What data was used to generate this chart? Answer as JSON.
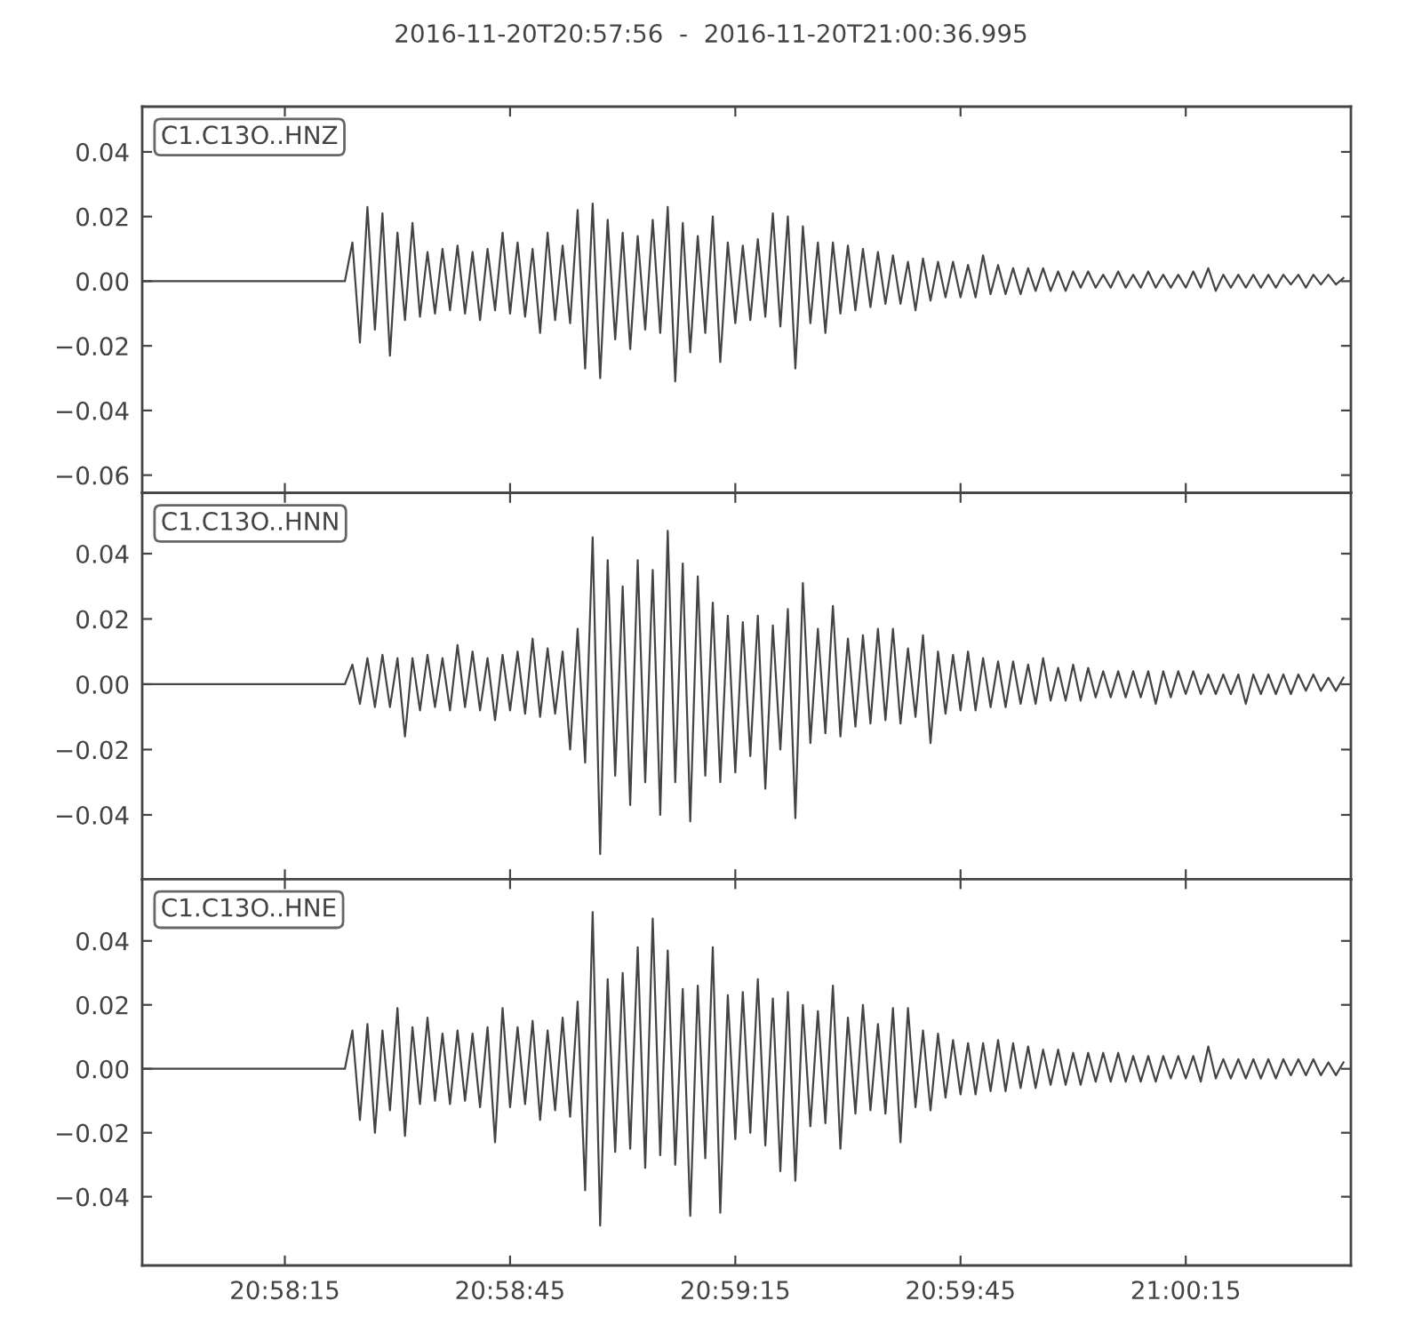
{
  "chart_data": [
    {
      "type": "line",
      "title": "2016-11-20T20:57:56  -  2016-11-20T21:00:36.995",
      "legend": "top left",
      "tick_labels": "y",
      "x": [
        "2016-11-20T20:57:56",
        "2016-11-20T20:58:05",
        "2016-11-20T20:58:14",
        "2016-11-20T20:58:23",
        "2016-11-20T20:58:24",
        "2016-11-20T20:58:25",
        "2016-11-20T20:58:26",
        "2016-11-20T20:58:27",
        "2016-11-20T20:58:28",
        "2016-11-20T20:58:29",
        "2016-11-20T20:58:30",
        "2016-11-20T20:58:31",
        "2016-11-20T20:58:32",
        "2016-11-20T20:58:33",
        "2016-11-20T20:58:34",
        "2016-11-20T20:58:35",
        "2016-11-20T20:58:36",
        "2016-11-20T20:58:37",
        "2016-11-20T20:58:38",
        "2016-11-20T20:58:39",
        "2016-11-20T20:58:40",
        "2016-11-20T20:58:41",
        "2016-11-20T20:58:42",
        "2016-11-20T20:58:43",
        "2016-11-20T20:58:44",
        "2016-11-20T20:58:45",
        "2016-11-20T20:58:46",
        "2016-11-20T20:58:47",
        "2016-11-20T20:58:48",
        "2016-11-20T20:58:49",
        "2016-11-20T20:58:50",
        "2016-11-20T20:58:51",
        "2016-11-20T20:58:52",
        "2016-11-20T20:58:53",
        "2016-11-20T20:58:54",
        "2016-11-20T20:58:55",
        "2016-11-20T20:58:56",
        "2016-11-20T20:58:57",
        "2016-11-20T20:58:58",
        "2016-11-20T20:58:59",
        "2016-11-20T20:59:00",
        "2016-11-20T20:59:01",
        "2016-11-20T20:59:02",
        "2016-11-20T20:59:03",
        "2016-11-20T20:59:04",
        "2016-11-20T20:59:05",
        "2016-11-20T20:59:06",
        "2016-11-20T20:59:07",
        "2016-11-20T20:59:08",
        "2016-11-20T20:59:09",
        "2016-11-20T20:59:10",
        "2016-11-20T20:59:11",
        "2016-11-20T20:59:12",
        "2016-11-20T20:59:13",
        "2016-11-20T20:59:14",
        "2016-11-20T20:59:15",
        "2016-11-20T20:59:16",
        "2016-11-20T20:59:17",
        "2016-11-20T20:59:18",
        "2016-11-20T20:59:19",
        "2016-11-20T20:59:20",
        "2016-11-20T20:59:21",
        "2016-11-20T20:59:22",
        "2016-11-20T20:59:23",
        "2016-11-20T20:59:24",
        "2016-11-20T20:59:25",
        "2016-11-20T20:59:26",
        "2016-11-20T20:59:27",
        "2016-11-20T20:59:28",
        "2016-11-20T20:59:29",
        "2016-11-20T20:59:30",
        "2016-11-20T20:59:31",
        "2016-11-20T20:59:32",
        "2016-11-20T20:59:33",
        "2016-11-20T20:59:34",
        "2016-11-20T20:59:35",
        "2016-11-20T20:59:36",
        "2016-11-20T20:59:37",
        "2016-11-20T20:59:38",
        "2016-11-20T20:59:39",
        "2016-11-20T20:59:40",
        "2016-11-20T20:59:41",
        "2016-11-20T20:59:42",
        "2016-11-20T20:59:43",
        "2016-11-20T20:59:44",
        "2016-11-20T20:59:45",
        "2016-11-20T20:59:46",
        "2016-11-20T20:59:47",
        "2016-11-20T20:59:48",
        "2016-11-20T20:59:49",
        "2016-11-20T20:59:50",
        "2016-11-20T20:59:51",
        "2016-11-20T20:59:52",
        "2016-11-20T20:59:53",
        "2016-11-20T20:59:54",
        "2016-11-20T20:59:55",
        "2016-11-20T20:59:56",
        "2016-11-20T20:59:57",
        "2016-11-20T20:59:58",
        "2016-11-20T20:59:59",
        "2016-11-20T21:00:00",
        "2016-11-20T21:00:01",
        "2016-11-20T21:00:02",
        "2016-11-20T21:00:03",
        "2016-11-20T21:00:04",
        "2016-11-20T21:00:05",
        "2016-11-20T21:00:06",
        "2016-11-20T21:00:07",
        "2016-11-20T21:00:08",
        "2016-11-20T21:00:09",
        "2016-11-20T21:00:10",
        "2016-11-20T21:00:11",
        "2016-11-20T21:00:12",
        "2016-11-20T21:00:13",
        "2016-11-20T21:00:14",
        "2016-11-20T21:00:15",
        "2016-11-20T21:00:16",
        "2016-11-20T21:00:17",
        "2016-11-20T21:00:18",
        "2016-11-20T21:00:19",
        "2016-11-20T21:00:20",
        "2016-11-20T21:00:21",
        "2016-11-20T21:00:22",
        "2016-11-20T21:00:23",
        "2016-11-20T21:00:24",
        "2016-11-20T21:00:25",
        "2016-11-20T21:00:26",
        "2016-11-20T21:00:27",
        "2016-11-20T21:00:28",
        "2016-11-20T21:00:29",
        "2016-11-20T21:00:30",
        "2016-11-20T21:00:31",
        "2016-11-20T21:00:32",
        "2016-11-20T21:00:33",
        "2016-11-20T21:00:34",
        "2016-11-20T21:00:35",
        "2016-11-20T21:00:36"
      ],
      "series": [
        {
          "name": "C1.C13O..HNZ",
          "color": "#444444",
          "values": [
            0,
            0,
            0,
            0,
            0.012,
            -0.019,
            0.023,
            -0.015,
            0.021,
            -0.023,
            0.015,
            -0.012,
            0.018,
            -0.011,
            0.009,
            -0.01,
            0.01,
            -0.009,
            0.011,
            -0.01,
            0.009,
            -0.012,
            0.01,
            -0.009,
            0.015,
            -0.01,
            0.012,
            -0.011,
            0.01,
            -0.016,
            0.015,
            -0.012,
            0.011,
            -0.013,
            0.022,
            -0.027,
            0.024,
            -0.03,
            0.019,
            -0.018,
            0.015,
            -0.021,
            0.014,
            -0.015,
            0.019,
            -0.016,
            0.023,
            -0.031,
            0.018,
            -0.022,
            0.014,
            -0.016,
            0.02,
            -0.025,
            0.012,
            -0.013,
            0.011,
            -0.012,
            0.013,
            -0.011,
            0.021,
            -0.014,
            0.02,
            -0.027,
            0.017,
            -0.013,
            0.012,
            -0.016,
            0.012,
            -0.01,
            0.011,
            -0.009,
            0.01,
            -0.008,
            0.009,
            -0.007,
            0.008,
            -0.007,
            0.006,
            -0.009,
            0.007,
            -0.006,
            0.006,
            -0.005,
            0.006,
            -0.005,
            0.005,
            -0.005,
            0.008,
            -0.004,
            0.005,
            -0.004,
            0.004,
            -0.004,
            0.004,
            -0.003,
            0.004,
            -0.003,
            0.003,
            -0.003,
            0.003,
            -0.002,
            0.003,
            -0.002,
            0.002,
            -0.002,
            0.003,
            -0.002,
            0.002,
            -0.002,
            0.003,
            -0.002,
            0.002,
            -0.002,
            0.002,
            -0.002,
            0.003,
            -0.002,
            0.004,
            -0.003,
            0.002,
            -0.002,
            0.002,
            -0.002,
            0.002,
            -0.002,
            0.002,
            -0.002,
            0.002,
            -0.001,
            0.002,
            -0.002,
            0.002,
            -0.001,
            0.002,
            -0.001,
            0.001
          ]
        }
      ],
      "xlim": [
        "2016-11-20T20:57:56",
        "2016-11-20T21:00:36.995"
      ],
      "xticks": [
        {
          "value": "2016-11-20T20:58:15",
          "label": null
        },
        {
          "value": "2016-11-20T20:58:45",
          "label": null
        },
        {
          "value": "2016-11-20T20:59:15",
          "label": null
        },
        {
          "value": "2016-11-20T20:59:45",
          "label": null
        },
        {
          "value": "2016-11-20T21:00:15",
          "label": null
        }
      ],
      "ylim": [
        -0.0655,
        0.054
      ],
      "yticks": [
        {
          "value": -0.06,
          "label": "−0.06"
        },
        {
          "value": -0.04,
          "label": "−0.04"
        },
        {
          "value": -0.02,
          "label": "−0.02"
        },
        {
          "value": 0.0,
          "label": "0.00"
        },
        {
          "value": 0.02,
          "label": "0.02"
        },
        {
          "value": 0.04,
          "label": "0.04"
        }
      ]
    },
    {
      "type": "line",
      "legend": "top left",
      "tick_labels": "y",
      "x": [
        "2016-11-20T20:57:56",
        "2016-11-20T20:58:05",
        "2016-11-20T20:58:14",
        "2016-11-20T20:58:23",
        "2016-11-20T20:58:24",
        "2016-11-20T20:58:25",
        "2016-11-20T20:58:26",
        "2016-11-20T20:58:27",
        "2016-11-20T20:58:28",
        "2016-11-20T20:58:29",
        "2016-11-20T20:58:30",
        "2016-11-20T20:58:31",
        "2016-11-20T20:58:32",
        "2016-11-20T20:58:33",
        "2016-11-20T20:58:34",
        "2016-11-20T20:58:35",
        "2016-11-20T20:58:36",
        "2016-11-20T20:58:37",
        "2016-11-20T20:58:38",
        "2016-11-20T20:58:39",
        "2016-11-20T20:58:40",
        "2016-11-20T20:58:41",
        "2016-11-20T20:58:42",
        "2016-11-20T20:58:43",
        "2016-11-20T20:58:44",
        "2016-11-20T20:58:45",
        "2016-11-20T20:58:46",
        "2016-11-20T20:58:47",
        "2016-11-20T20:58:48",
        "2016-11-20T20:58:49",
        "2016-11-20T20:58:50",
        "2016-11-20T20:58:51",
        "2016-11-20T20:58:52",
        "2016-11-20T20:58:53",
        "2016-11-20T20:58:54",
        "2016-11-20T20:58:55",
        "2016-11-20T20:58:56",
        "2016-11-20T20:58:57",
        "2016-11-20T20:58:58",
        "2016-11-20T20:58:59",
        "2016-11-20T20:59:00",
        "2016-11-20T20:59:01",
        "2016-11-20T20:59:02",
        "2016-11-20T20:59:03",
        "2016-11-20T20:59:04",
        "2016-11-20T20:59:05",
        "2016-11-20T20:59:06",
        "2016-11-20T20:59:07",
        "2016-11-20T20:59:08",
        "2016-11-20T20:59:09",
        "2016-11-20T20:59:10",
        "2016-11-20T20:59:11",
        "2016-11-20T20:59:12",
        "2016-11-20T20:59:13",
        "2016-11-20T20:59:14",
        "2016-11-20T20:59:15",
        "2016-11-20T20:59:16",
        "2016-11-20T20:59:17",
        "2016-11-20T20:59:18",
        "2016-11-20T20:59:19",
        "2016-11-20T20:59:20",
        "2016-11-20T20:59:21",
        "2016-11-20T20:59:22",
        "2016-11-20T20:59:23",
        "2016-11-20T20:59:24",
        "2016-11-20T20:59:25",
        "2016-11-20T20:59:26",
        "2016-11-20T20:59:27",
        "2016-11-20T20:59:28",
        "2016-11-20T20:59:29",
        "2016-11-20T20:59:30",
        "2016-11-20T20:59:31",
        "2016-11-20T20:59:32",
        "2016-11-20T20:59:33",
        "2016-11-20T20:59:34",
        "2016-11-20T20:59:35",
        "2016-11-20T20:59:36",
        "2016-11-20T20:59:37",
        "2016-11-20T20:59:38",
        "2016-11-20T20:59:39",
        "2016-11-20T20:59:40",
        "2016-11-20T20:59:41",
        "2016-11-20T20:59:42",
        "2016-11-20T20:59:43",
        "2016-11-20T20:59:44",
        "2016-11-20T20:59:45",
        "2016-11-20T20:59:46",
        "2016-11-20T20:59:47",
        "2016-11-20T20:59:48",
        "2016-11-20T20:59:49",
        "2016-11-20T20:59:50",
        "2016-11-20T20:59:51",
        "2016-11-20T20:59:52",
        "2016-11-20T20:59:53",
        "2016-11-20T20:59:54",
        "2016-11-20T20:59:55",
        "2016-11-20T20:59:56",
        "2016-11-20T20:59:57",
        "2016-11-20T20:59:58",
        "2016-11-20T20:59:59",
        "2016-11-20T21:00:00",
        "2016-11-20T21:00:01",
        "2016-11-20T21:00:02",
        "2016-11-20T21:00:03",
        "2016-11-20T21:00:04",
        "2016-11-20T21:00:05",
        "2016-11-20T21:00:06",
        "2016-11-20T21:00:07",
        "2016-11-20T21:00:08",
        "2016-11-20T21:00:09",
        "2016-11-20T21:00:10",
        "2016-11-20T21:00:11",
        "2016-11-20T21:00:12",
        "2016-11-20T21:00:13",
        "2016-11-20T21:00:14",
        "2016-11-20T21:00:15",
        "2016-11-20T21:00:16",
        "2016-11-20T21:00:17",
        "2016-11-20T21:00:18",
        "2016-11-20T21:00:19",
        "2016-11-20T21:00:20",
        "2016-11-20T21:00:21",
        "2016-11-20T21:00:22",
        "2016-11-20T21:00:23",
        "2016-11-20T21:00:24",
        "2016-11-20T21:00:25",
        "2016-11-20T21:00:26",
        "2016-11-20T21:00:27",
        "2016-11-20T21:00:28",
        "2016-11-20T21:00:29",
        "2016-11-20T21:00:30",
        "2016-11-20T21:00:31",
        "2016-11-20T21:00:32",
        "2016-11-20T21:00:33",
        "2016-11-20T21:00:34",
        "2016-11-20T21:00:35",
        "2016-11-20T21:00:36"
      ],
      "series": [
        {
          "name": "C1.C13O..HNN",
          "color": "#444444",
          "values": [
            0,
            0,
            0,
            0,
            0.006,
            -0.006,
            0.008,
            -0.007,
            0.009,
            -0.007,
            0.008,
            -0.016,
            0.008,
            -0.008,
            0.009,
            -0.007,
            0.008,
            -0.008,
            0.012,
            -0.007,
            0.01,
            -0.008,
            0.008,
            -0.011,
            0.009,
            -0.008,
            0.01,
            -0.009,
            0.014,
            -0.01,
            0.011,
            -0.009,
            0.01,
            -0.02,
            0.017,
            -0.024,
            0.045,
            -0.052,
            0.038,
            -0.028,
            0.03,
            -0.037,
            0.038,
            -0.03,
            0.035,
            -0.04,
            0.047,
            -0.03,
            0.037,
            -0.042,
            0.033,
            -0.028,
            0.025,
            -0.03,
            0.021,
            -0.027,
            0.019,
            -0.022,
            0.021,
            -0.032,
            0.018,
            -0.02,
            0.023,
            -0.041,
            0.031,
            -0.018,
            0.017,
            -0.015,
            0.024,
            -0.016,
            0.014,
            -0.013,
            0.015,
            -0.012,
            0.017,
            -0.011,
            0.017,
            -0.012,
            0.011,
            -0.01,
            0.015,
            -0.018,
            0.01,
            -0.009,
            0.009,
            -0.008,
            0.01,
            -0.008,
            0.008,
            -0.007,
            0.007,
            -0.007,
            0.007,
            -0.006,
            0.006,
            -0.006,
            0.008,
            -0.005,
            0.005,
            -0.005,
            0.006,
            -0.005,
            0.005,
            -0.004,
            0.004,
            -0.004,
            0.004,
            -0.004,
            0.004,
            -0.004,
            0.004,
            -0.006,
            0.004,
            -0.004,
            0.004,
            -0.003,
            0.004,
            -0.003,
            0.003,
            -0.003,
            0.003,
            -0.003,
            0.003,
            -0.006,
            0.003,
            -0.003,
            0.003,
            -0.003,
            0.003,
            -0.003,
            0.003,
            -0.002,
            0.003,
            -0.002,
            0.002,
            -0.002,
            0.002
          ]
        }
      ],
      "xlim": [
        "2016-11-20T20:57:56",
        "2016-11-20T21:00:36.995"
      ],
      "xticks": [
        {
          "value": "2016-11-20T20:58:15",
          "label": null
        },
        {
          "value": "2016-11-20T20:58:45",
          "label": null
        },
        {
          "value": "2016-11-20T20:59:15",
          "label": null
        },
        {
          "value": "2016-11-20T20:59:45",
          "label": null
        },
        {
          "value": "2016-11-20T21:00:15",
          "label": null
        }
      ],
      "ylim": [
        -0.0597,
        0.0586
      ],
      "yticks": [
        {
          "value": -0.04,
          "label": "−0.04"
        },
        {
          "value": -0.02,
          "label": "−0.02"
        },
        {
          "value": 0.0,
          "label": "0.00"
        },
        {
          "value": 0.02,
          "label": "0.02"
        },
        {
          "value": 0.04,
          "label": "0.04"
        }
      ]
    },
    {
      "type": "line",
      "legend": "top left",
      "x": [
        "2016-11-20T20:57:56",
        "2016-11-20T20:58:05",
        "2016-11-20T20:58:14",
        "2016-11-20T20:58:23",
        "2016-11-20T20:58:24",
        "2016-11-20T20:58:25",
        "2016-11-20T20:58:26",
        "2016-11-20T20:58:27",
        "2016-11-20T20:58:28",
        "2016-11-20T20:58:29",
        "2016-11-20T20:58:30",
        "2016-11-20T20:58:31",
        "2016-11-20T20:58:32",
        "2016-11-20T20:58:33",
        "2016-11-20T20:58:34",
        "2016-11-20T20:58:35",
        "2016-11-20T20:58:36",
        "2016-11-20T20:58:37",
        "2016-11-20T20:58:38",
        "2016-11-20T20:58:39",
        "2016-11-20T20:58:40",
        "2016-11-20T20:58:41",
        "2016-11-20T20:58:42",
        "2016-11-20T20:58:43",
        "2016-11-20T20:58:44",
        "2016-11-20T20:58:45",
        "2016-11-20T20:58:46",
        "2016-11-20T20:58:47",
        "2016-11-20T20:58:48",
        "2016-11-20T20:58:49",
        "2016-11-20T20:58:50",
        "2016-11-20T20:58:51",
        "2016-11-20T20:58:52",
        "2016-11-20T20:58:53",
        "2016-11-20T20:58:54",
        "2016-11-20T20:58:55",
        "2016-11-20T20:58:56",
        "2016-11-20T20:58:57",
        "2016-11-20T20:58:58",
        "2016-11-20T20:58:59",
        "2016-11-20T20:59:00",
        "2016-11-20T20:59:01",
        "2016-11-20T20:59:02",
        "2016-11-20T20:59:03",
        "2016-11-20T20:59:04",
        "2016-11-20T20:59:05",
        "2016-11-20T20:59:06",
        "2016-11-20T20:59:07",
        "2016-11-20T20:59:08",
        "2016-11-20T20:59:09",
        "2016-11-20T20:59:10",
        "2016-11-20T20:59:11",
        "2016-11-20T20:59:12",
        "2016-11-20T20:59:13",
        "2016-11-20T20:59:14",
        "2016-11-20T20:59:15",
        "2016-11-20T20:59:16",
        "2016-11-20T20:59:17",
        "2016-11-20T20:59:18",
        "2016-11-20T20:59:19",
        "2016-11-20T20:59:20",
        "2016-11-20T20:59:21",
        "2016-11-20T20:59:22",
        "2016-11-20T20:59:23",
        "2016-11-20T20:59:24",
        "2016-11-20T20:59:25",
        "2016-11-20T20:59:26",
        "2016-11-20T20:59:27",
        "2016-11-20T20:59:28",
        "2016-11-20T20:59:29",
        "2016-11-20T20:59:30",
        "2016-11-20T20:59:31",
        "2016-11-20T20:59:32",
        "2016-11-20T20:59:33",
        "2016-11-20T20:59:34",
        "2016-11-20T20:59:35",
        "2016-11-20T20:59:36",
        "2016-11-20T20:59:37",
        "2016-11-20T20:59:38",
        "2016-11-20T20:59:39",
        "2016-11-20T20:59:40",
        "2016-11-20T20:59:41",
        "2016-11-20T20:59:42",
        "2016-11-20T20:59:43",
        "2016-11-20T20:59:44",
        "2016-11-20T20:59:45",
        "2016-11-20T20:59:46",
        "2016-11-20T20:59:47",
        "2016-11-20T20:59:48",
        "2016-11-20T20:59:49",
        "2016-11-20T20:59:50",
        "2016-11-20T20:59:51",
        "2016-11-20T20:59:52",
        "2016-11-20T20:59:53",
        "2016-11-20T20:59:54",
        "2016-11-20T20:59:55",
        "2016-11-20T20:59:56",
        "2016-11-20T20:59:57",
        "2016-11-20T20:59:58",
        "2016-11-20T20:59:59",
        "2016-11-20T21:00:00",
        "2016-11-20T21:00:01",
        "2016-11-20T21:00:02",
        "2016-11-20T21:00:03",
        "2016-11-20T21:00:04",
        "2016-11-20T21:00:05",
        "2016-11-20T21:00:06",
        "2016-11-20T21:00:07",
        "2016-11-20T21:00:08",
        "2016-11-20T21:00:09",
        "2016-11-20T21:00:10",
        "2016-11-20T21:00:11",
        "2016-11-20T21:00:12",
        "2016-11-20T21:00:13",
        "2016-11-20T21:00:14",
        "2016-11-20T21:00:15",
        "2016-11-20T21:00:16",
        "2016-11-20T21:00:17",
        "2016-11-20T21:00:18",
        "2016-11-20T21:00:19",
        "2016-11-20T21:00:20",
        "2016-11-20T21:00:21",
        "2016-11-20T21:00:22",
        "2016-11-20T21:00:23",
        "2016-11-20T21:00:24",
        "2016-11-20T21:00:25",
        "2016-11-20T21:00:26",
        "2016-11-20T21:00:27",
        "2016-11-20T21:00:28",
        "2016-11-20T21:00:29",
        "2016-11-20T21:00:30",
        "2016-11-20T21:00:31",
        "2016-11-20T21:00:32",
        "2016-11-20T21:00:33",
        "2016-11-20T21:00:34",
        "2016-11-20T21:00:35",
        "2016-11-20T21:00:36"
      ],
      "series": [
        {
          "name": "C1.C13O..HNE",
          "color": "#444444",
          "values": [
            0,
            0,
            0,
            0,
            0.012,
            -0.016,
            0.014,
            -0.02,
            0.012,
            -0.013,
            0.019,
            -0.021,
            0.013,
            -0.011,
            0.016,
            -0.01,
            0.011,
            -0.011,
            0.012,
            -0.01,
            0.011,
            -0.012,
            0.013,
            -0.023,
            0.019,
            -0.012,
            0.013,
            -0.011,
            0.015,
            -0.016,
            0.012,
            -0.013,
            0.016,
            -0.015,
            0.021,
            -0.038,
            0.049,
            -0.049,
            0.028,
            -0.026,
            0.03,
            -0.025,
            0.038,
            -0.031,
            0.047,
            -0.027,
            0.037,
            -0.03,
            0.025,
            -0.046,
            0.026,
            -0.028,
            0.038,
            -0.045,
            0.023,
            -0.022,
            0.024,
            -0.02,
            0.028,
            -0.024,
            0.022,
            -0.032,
            0.024,
            -0.035,
            0.02,
            -0.018,
            0.018,
            -0.017,
            0.026,
            -0.025,
            0.016,
            -0.014,
            0.02,
            -0.013,
            0.014,
            -0.014,
            0.019,
            -0.023,
            0.019,
            -0.012,
            0.012,
            -0.013,
            0.011,
            -0.009,
            0.009,
            -0.008,
            0.008,
            -0.008,
            0.008,
            -0.007,
            0.009,
            -0.007,
            0.008,
            -0.006,
            0.007,
            -0.006,
            0.006,
            -0.005,
            0.006,
            -0.005,
            0.005,
            -0.005,
            0.005,
            -0.004,
            0.005,
            -0.004,
            0.005,
            -0.004,
            0.004,
            -0.004,
            0.004,
            -0.004,
            0.004,
            -0.003,
            0.004,
            -0.003,
            0.004,
            -0.004,
            0.007,
            -0.003,
            0.003,
            -0.003,
            0.003,
            -0.003,
            0.003,
            -0.003,
            0.003,
            -0.003,
            0.003,
            -0.002,
            0.003,
            -0.002,
            0.003,
            -0.002,
            0.002,
            -0.002,
            0.002
          ]
        }
      ],
      "xlim": [
        "2016-11-20T20:57:56",
        "2016-11-20T21:00:36.995"
      ],
      "xticks": [
        {
          "value": "2016-11-20T20:58:15",
          "label": "20:58:15"
        },
        {
          "value": "2016-11-20T20:58:45",
          "label": "20:58:45"
        },
        {
          "value": "2016-11-20T20:59:15",
          "label": "20:59:15"
        },
        {
          "value": "2016-11-20T20:59:45",
          "label": "20:59:45"
        },
        {
          "value": "2016-11-20T21:00:15",
          "label": "21:00:15"
        }
      ],
      "ylim": [
        -0.0615,
        0.0593
      ],
      "yticks": [
        {
          "value": -0.04,
          "label": "−0.04"
        },
        {
          "value": -0.02,
          "label": "−0.02"
        },
        {
          "value": 0.0,
          "label": "0.00"
        },
        {
          "value": 0.02,
          "label": "0.02"
        },
        {
          "value": 0.04,
          "label": "0.04"
        }
      ]
    }
  ]
}
